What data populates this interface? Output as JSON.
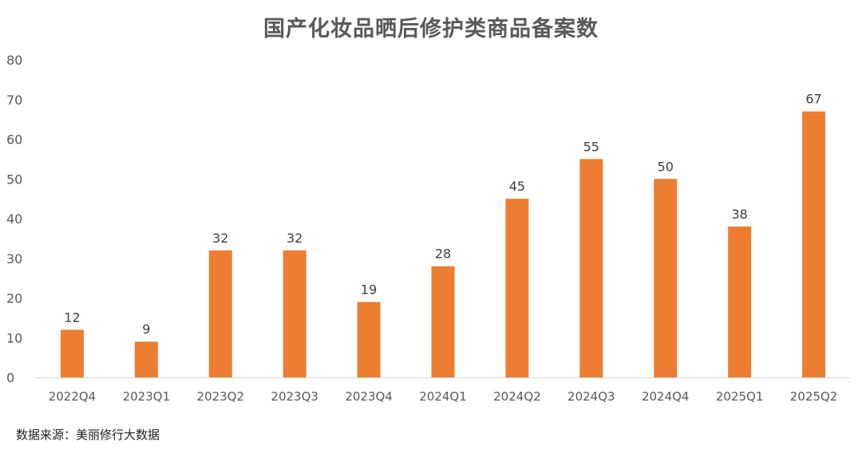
{
  "chart_data": {
    "type": "bar",
    "title": "国产化妆品晒后修护类商品备案数",
    "categories": [
      "2022Q4",
      "2023Q1",
      "2023Q2",
      "2023Q3",
      "2023Q4",
      "2024Q1",
      "2024Q2",
      "2024Q3",
      "2024Q4",
      "2025Q1",
      "2025Q2"
    ],
    "values": [
      12,
      9,
      32,
      32,
      19,
      28,
      45,
      55,
      50,
      38,
      67
    ],
    "ylim": [
      0,
      80
    ],
    "yticks": [
      0,
      10,
      20,
      30,
      40,
      50,
      60,
      70,
      80
    ],
    "xlabel": "",
    "ylabel": "",
    "grid": false,
    "legend": "none",
    "bar_color": "#ED7D31",
    "data_labels": true
  },
  "source": "数据来源：美丽修行大数据"
}
